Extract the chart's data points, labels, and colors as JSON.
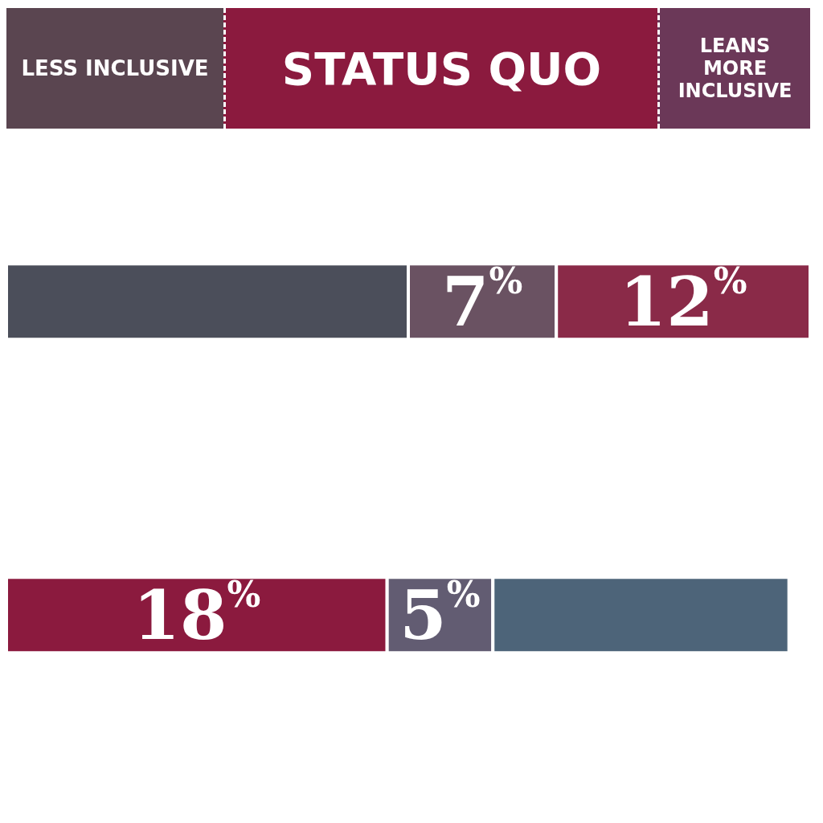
{
  "chart_data": {
    "type": "bar",
    "orientation": "horizontal",
    "stacked": true,
    "categories": [
      null,
      null
    ],
    "tick_labels": false,
    "annotations": [
      "LESS INCLUSIVE",
      "STATUS QUO",
      "LEANS MORE INCLUSIVE"
    ],
    "series": [
      {
        "colors": [
          "#4b4e5a",
          "#8b1a3e"
        ],
        "values": [
          19,
          18
        ],
        "value_labels": [
          null,
          "18$^{%}$"
        ]
      },
      {
        "colors": [
          "#6a5262",
          "#625c72"
        ],
        "values": [
          7,
          5
        ],
        "value_labels": [
          "7$^{%}$",
          "5$^{%}$"
        ]
      },
      {
        "colors": [
          "#8a2a48",
          "#4d6479"
        ],
        "values": [
          12,
          14
        ],
        "value_labels": [
          "12$^{%}$",
          null
        ]
      }
    ]
  }
}
